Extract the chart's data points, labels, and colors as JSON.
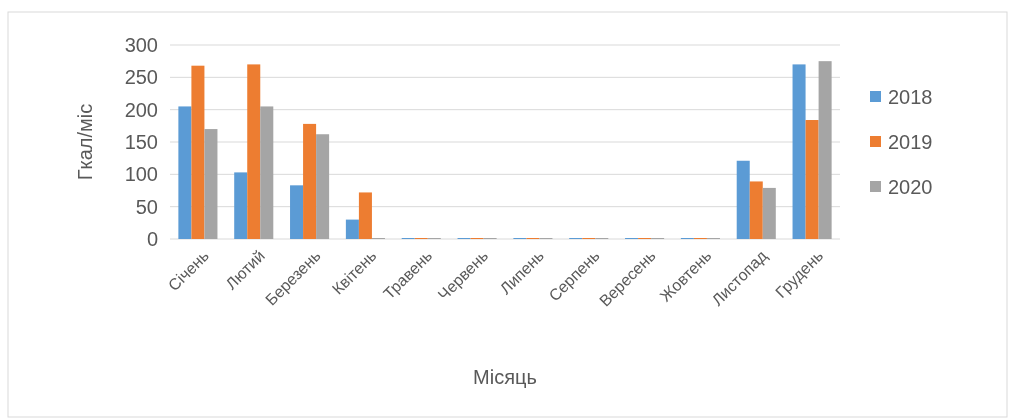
{
  "chart_data": {
    "type": "bar",
    "xlabel": "Місяць",
    "ylabel": "Гкал/міс",
    "categories": [
      "Січень",
      "Лютий",
      "Березень",
      "Квітень",
      "Травень",
      "Червень",
      "Липень",
      "Серпень",
      "Вересень",
      "Жовтень",
      "Листопад",
      "Грудень"
    ],
    "series": [
      {
        "name": "2018",
        "color": "#5b9bd5",
        "values": [
          205,
          103,
          83,
          30,
          0,
          0,
          0,
          0,
          0,
          0,
          121,
          270
        ]
      },
      {
        "name": "2019",
        "color": "#ed7d31",
        "values": [
          268,
          270,
          178,
          72,
          0,
          0,
          0,
          0,
          0,
          0,
          89,
          184
        ]
      },
      {
        "name": "2020",
        "color": "#a5a5a5",
        "values": [
          170,
          205,
          162,
          0,
          0,
          0,
          0,
          0,
          0,
          0,
          79,
          275
        ]
      }
    ],
    "ylim": [
      0,
      300
    ],
    "yticks": [
      0,
      50,
      100,
      150,
      200,
      250,
      300
    ],
    "grid": "y",
    "legend": "right"
  }
}
